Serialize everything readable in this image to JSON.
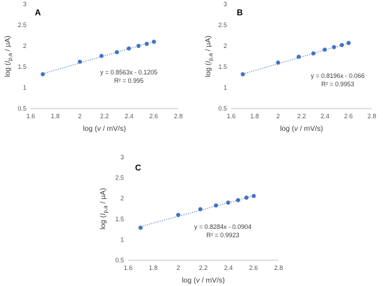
{
  "chart_data": [
    {
      "type": "scatter",
      "panel_label": "A",
      "x": [
        1.699,
        2.0,
        2.176,
        2.301,
        2.398,
        2.477,
        2.544,
        2.602
      ],
      "y": [
        1.32,
        1.62,
        1.76,
        1.85,
        1.94,
        2.0,
        2.05,
        2.1
      ],
      "trendline": {
        "slope": 0.8563,
        "intercept": -0.1205,
        "style": "dotted"
      },
      "equation": "y = 0.8563x - 0.1205",
      "r2_label": "R² = 0.995",
      "xlim": [
        1.6,
        2.8
      ],
      "ylim": [
        0.5,
        3
      ],
      "xticks": [
        "1.6",
        "1.8",
        "2",
        "2.2",
        "2.4",
        "2.6",
        "2.8"
      ],
      "yticks": [
        "0.5",
        "1",
        "1.5",
        "2",
        "2.5",
        "3"
      ],
      "xlabel": {
        "pre": "log (",
        "var": "v",
        "post": " / mV/s)"
      },
      "ylabel": {
        "pre": "log (",
        "var": "I",
        "sub": "p,a",
        "post": " / µA)"
      },
      "grid": false,
      "color": "#4472c4"
    },
    {
      "type": "scatter",
      "panel_label": "B",
      "x": [
        1.699,
        2.0,
        2.176,
        2.301,
        2.398,
        2.477,
        2.544,
        2.602
      ],
      "y": [
        1.32,
        1.6,
        1.74,
        1.82,
        1.91,
        1.97,
        2.02,
        2.07
      ],
      "trendline": {
        "slope": 0.8196,
        "intercept": -0.066,
        "style": "dotted"
      },
      "equation": "y = 0.8196x - 0.066",
      "r2_label": "R² = 0.9953",
      "xlim": [
        1.6,
        2.8
      ],
      "ylim": [
        0.5,
        3
      ],
      "xticks": [
        "1.6",
        "1.8",
        "2",
        "2.2",
        "2.4",
        "2.6",
        "2.8"
      ],
      "yticks": [
        "0.5",
        "1",
        "1.5",
        "2",
        "2.5",
        "3"
      ],
      "xlabel": {
        "pre": "log (",
        "var": "v",
        "post": " / mV/s)"
      },
      "ylabel": {
        "pre": "log (",
        "var": "I",
        "sub": "p,a",
        "post": " / µA)"
      },
      "grid": false,
      "color": "#4472c4"
    },
    {
      "type": "scatter",
      "panel_label": "C",
      "x": [
        1.699,
        2.0,
        2.176,
        2.301,
        2.398,
        2.477,
        2.544,
        2.602
      ],
      "y": [
        1.29,
        1.6,
        1.74,
        1.83,
        1.9,
        1.96,
        2.02,
        2.06
      ],
      "trendline": {
        "slope": 0.8284,
        "intercept": -0.0904,
        "style": "dotted"
      },
      "equation": "y = 0.8284x - 0.0904",
      "r2_label": "R² = 0.9923",
      "xlim": [
        1.6,
        2.8
      ],
      "ylim": [
        0.5,
        3
      ],
      "xticks": [
        "1.6",
        "1.8",
        "2",
        "2.2",
        "2.4",
        "2.6",
        "2.8"
      ],
      "yticks": [
        "0.5",
        "1",
        "1.5",
        "2",
        "2.5",
        "3"
      ],
      "xlabel": {
        "pre": "log (",
        "var": "v",
        "post": " / mV/s)"
      },
      "ylabel": {
        "pre": "log (",
        "var": "I",
        "sub": "p,a",
        "post": " / µA)"
      },
      "grid": false,
      "color": "#4472c4"
    }
  ]
}
